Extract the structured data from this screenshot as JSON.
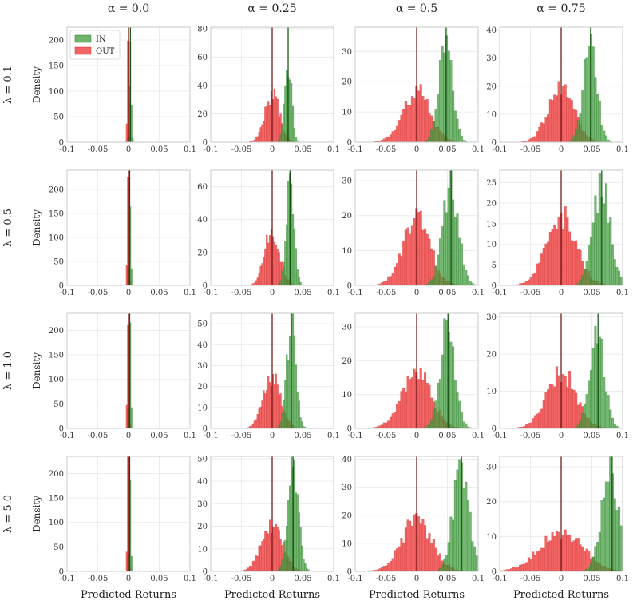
{
  "colors": {
    "in_fill": "#3f9b3b",
    "in_edge": "#2f7d2b",
    "out_fill": "#ee4a4a",
    "out_edge": "#d23232",
    "overlap": "#8a3a1c",
    "vline_in": "#0e4d0b",
    "vline_out": "#6b0a0a",
    "grid": "#ececec",
    "frame": "#c8c8c8"
  },
  "chart_data": {
    "type": "bar",
    "subtype": "histogram-grid",
    "col_titles": [
      "α = 0.0",
      "α = 0.25",
      "α = 0.5",
      "α = 0.75"
    ],
    "row_titles": [
      "λ = 0.1",
      "λ = 0.5",
      "λ = 1.0",
      "λ = 5.0"
    ],
    "ylabel": "Density",
    "xlabel": "Predicted Returns",
    "xlim": [
      -0.1,
      0.1
    ],
    "xticks": [
      -0.1,
      -0.05,
      0,
      0.05,
      0.1
    ],
    "xtick_labels": [
      "-0.1",
      "-0.05",
      "0",
      "0.05",
      "0.1"
    ],
    "legend": {
      "position": "top-left",
      "entries": [
        "IN",
        "OUT"
      ]
    },
    "grid": true,
    "panels": [
      [
        {
          "ylim": [
            0,
            225
          ],
          "yticks": [
            0,
            50,
            100,
            150,
            200
          ],
          "in": {
            "center": 0.003,
            "peak": 190,
            "sd": 0.0016
          },
          "out": {
            "center": -0.0005,
            "peak": 218,
            "sd": 0.0014
          },
          "vin": 0.003,
          "vout": 0.0,
          "bins": 0.002
        },
        {
          "ylim": [
            0,
            81
          ],
          "yticks": [
            0,
            20,
            40,
            60,
            80
          ],
          "in": {
            "center": 0.026,
            "peak": 58,
            "sd": 0.0055
          },
          "out": {
            "center": 0.0,
            "peak": 34,
            "sd": 0.012
          },
          "vin": 0.026,
          "vout": 0.0,
          "bins": 0.0025
        },
        {
          "ylim": [
            0,
            38
          ],
          "yticks": [
            0,
            10,
            20,
            30
          ],
          "in": {
            "center": 0.047,
            "peak": 33,
            "sd": 0.011
          },
          "out": {
            "center": 0.0,
            "peak": 17.5,
            "sd": 0.022
          },
          "vin": 0.048,
          "vout": 0.0,
          "bins": 0.0035
        },
        {
          "ylim": [
            0,
            41
          ],
          "yticks": [
            0,
            10,
            20,
            30,
            40
          ],
          "in": {
            "center": 0.047,
            "peak": 36,
            "sd": 0.011
          },
          "out": {
            "center": 0.0,
            "peak": 19,
            "sd": 0.021
          },
          "vin": 0.048,
          "vout": 0.0,
          "bins": 0.0035
        }
      ],
      [
        {
          "ylim": [
            0,
            240
          ],
          "yticks": [
            0,
            50,
            100,
            150,
            200
          ],
          "in": {
            "center": 0.002,
            "peak": 228,
            "sd": 0.0016
          },
          "out": {
            "center": -0.0005,
            "peak": 228,
            "sd": 0.0014
          },
          "vin": 0.002,
          "vout": 0.0,
          "bins": 0.002
        },
        {
          "ylim": [
            0,
            70
          ],
          "yticks": [
            0,
            20,
            40,
            60
          ],
          "in": {
            "center": 0.029,
            "peak": 60,
            "sd": 0.0065
          },
          "out": {
            "center": 0.0,
            "peak": 34,
            "sd": 0.012
          },
          "vin": 0.029,
          "vout": 0.0,
          "bins": 0.0025
        },
        {
          "ylim": [
            0,
            33
          ],
          "yticks": [
            0,
            10,
            20,
            30
          ],
          "in": {
            "center": 0.055,
            "peak": 29,
            "sd": 0.013
          },
          "out": {
            "center": 0.0,
            "peak": 19,
            "sd": 0.022
          },
          "vin": 0.056,
          "vout": 0.0,
          "bins": 0.0035
        },
        {
          "ylim": [
            0,
            28
          ],
          "yticks": [
            0,
            5,
            10,
            15,
            20,
            25
          ],
          "in": {
            "center": 0.066,
            "peak": 25,
            "sd": 0.014
          },
          "out": {
            "center": 0.0,
            "peak": 17.5,
            "sd": 0.024
          },
          "vin": 0.066,
          "vout": 0.0,
          "bins": 0.0035
        }
      ],
      [
        {
          "ylim": [
            0,
            235
          ],
          "yticks": [
            0,
            50,
            100,
            150,
            200
          ],
          "in": {
            "center": 0.002,
            "peak": 225,
            "sd": 0.0016
          },
          "out": {
            "center": -0.0005,
            "peak": 225,
            "sd": 0.0014
          },
          "vin": 0.002,
          "vout": 0.0,
          "bins": 0.002
        },
        {
          "ylim": [
            0,
            55
          ],
          "yticks": [
            0,
            10,
            20,
            30,
            40,
            50
          ],
          "in": {
            "center": 0.031,
            "peak": 50,
            "sd": 0.0075
          },
          "out": {
            "center": 0.0,
            "peak": 26,
            "sd": 0.014
          },
          "vin": 0.031,
          "vout": 0.0,
          "bins": 0.0025
        },
        {
          "ylim": [
            0,
            34
          ],
          "yticks": [
            0,
            10,
            20,
            30
          ],
          "in": {
            "center": 0.05,
            "peak": 30,
            "sd": 0.012
          },
          "out": {
            "center": 0.0,
            "peak": 16.5,
            "sd": 0.024
          },
          "vin": 0.051,
          "vout": 0.0,
          "bins": 0.0035
        },
        {
          "ylim": [
            0,
            31
          ],
          "yticks": [
            0,
            10,
            20,
            30
          ],
          "in": {
            "center": 0.058,
            "peak": 27,
            "sd": 0.012
          },
          "out": {
            "center": 0.0,
            "peak": 15.5,
            "sd": 0.024
          },
          "vin": 0.06,
          "vout": 0.0,
          "bins": 0.0035
        }
      ],
      [
        {
          "ylim": [
            0,
            235
          ],
          "yticks": [
            0,
            50,
            100,
            150,
            200
          ],
          "in": {
            "center": 0.002,
            "peak": 223,
            "sd": 0.0016
          },
          "out": {
            "center": -0.0005,
            "peak": 223,
            "sd": 0.0014
          },
          "vin": 0.002,
          "vout": 0.0,
          "bins": 0.002
        },
        {
          "ylim": [
            0,
            51
          ],
          "yticks": [
            0,
            10,
            20,
            30,
            40,
            50
          ],
          "in": {
            "center": 0.034,
            "peak": 48,
            "sd": 0.0085
          },
          "out": {
            "center": 0.0,
            "peak": 21,
            "sd": 0.017
          },
          "vin": 0.034,
          "vout": 0.0,
          "bins": 0.0025
        },
        {
          "ylim": [
            0,
            41
          ],
          "yticks": [
            0,
            10,
            20,
            30,
            40
          ],
          "in": {
            "center": 0.072,
            "peak": 36,
            "sd": 0.013
          },
          "out": {
            "center": 0.0,
            "peak": 18.5,
            "sd": 0.025
          },
          "vin": 0.073,
          "vout": 0.0,
          "bins": 0.0035
        },
        {
          "ylim": [
            0,
            33
          ],
          "yticks": [
            0,
            10,
            20,
            30
          ],
          "in": {
            "center": 0.08,
            "peak": 29,
            "sd": 0.014
          },
          "out": {
            "center": 0.0,
            "peak": 11.5,
            "sd": 0.035
          },
          "vin": 0.083,
          "vout": 0.0,
          "bins": 0.0035
        }
      ]
    ]
  }
}
